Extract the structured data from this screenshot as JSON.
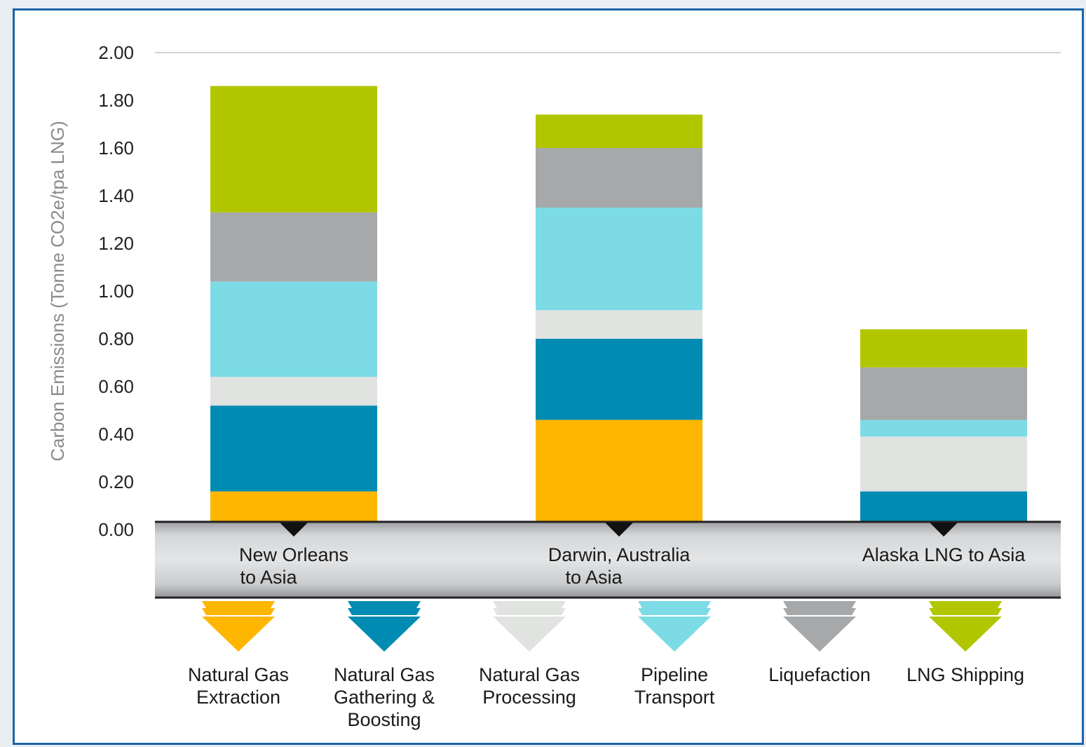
{
  "chart_data": {
    "type": "bar",
    "stacked": true,
    "title": "",
    "xlabel": "",
    "ylabel": "Carbon Emissions (Tonne CO2e/tpa LNG)",
    "ylim": [
      0,
      2.0
    ],
    "yticks": [
      "0.00",
      "0.20",
      "0.40",
      "0.60",
      "0.80",
      "1.00",
      "1.20",
      "1.40",
      "1.60",
      "1.80",
      "2.00"
    ],
    "grid": "top line only",
    "legend_position": "bottom",
    "categories": [
      [
        "New Orleans",
        "to Asia"
      ],
      [
        "Darwin, Australia",
        "to Asia"
      ],
      [
        "Alaska LNG to Asia"
      ]
    ],
    "series": [
      {
        "name": "Natural Gas Extraction",
        "label_lines": [
          "Natural Gas",
          "Extraction"
        ],
        "color": "#ffb600",
        "values": [
          0.16,
          0.46,
          0.0
        ]
      },
      {
        "name": "Natural Gas Gathering & Boosting",
        "label_lines": [
          "Natural Gas",
          "Gathering &",
          "Boosting"
        ],
        "color": "#008bb2",
        "values": [
          0.36,
          0.34,
          0.16
        ]
      },
      {
        "name": "Natural Gas Processing",
        "label_lines": [
          "Natural Gas",
          "Processing"
        ],
        "color": "#e1e3e1",
        "values": [
          0.12,
          0.12,
          0.23
        ]
      },
      {
        "name": "Pipeline Transport",
        "label_lines": [
          "Pipeline",
          "Transport"
        ],
        "color": "#7ddbe5",
        "values": [
          0.4,
          0.43,
          0.07
        ]
      },
      {
        "name": "Liquefaction",
        "label_lines": [
          "Liquefaction"
        ],
        "color": "#a6a8aa",
        "values": [
          0.29,
          0.25,
          0.22
        ]
      },
      {
        "name": "LNG Shipping",
        "label_lines": [
          "LNG Shipping"
        ],
        "color": "#b2c600",
        "values": [
          0.53,
          0.14,
          0.16
        ]
      }
    ]
  }
}
